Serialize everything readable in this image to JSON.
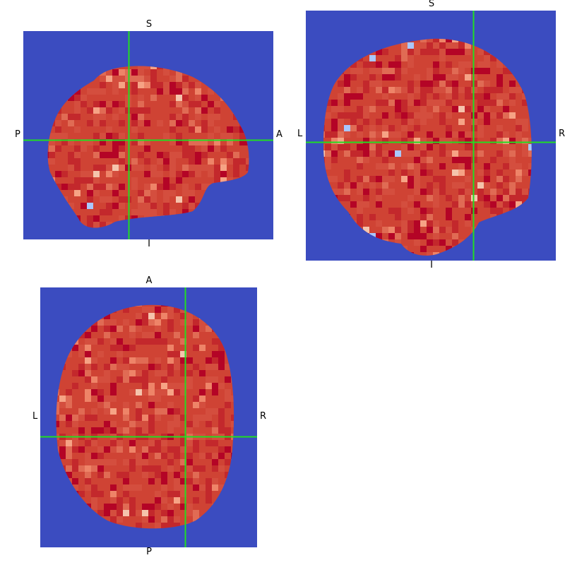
{
  "viewer": {
    "background_color": "#3b4cc0",
    "brain_color": "#cf4334",
    "crosshair_color": "#22dd22",
    "cell_palette": [
      "#b40426",
      "#c3282c",
      "#d44e3e",
      "#e06b54",
      "#ee8468",
      "#f6a385",
      "#f5c4ac",
      "#aac7fd"
    ],
    "views": {
      "sagittal": {
        "top": "S",
        "bottom": "I",
        "left": "P",
        "right": "A"
      },
      "coronal": {
        "top": "S",
        "bottom": "I",
        "left": "L",
        "right": "R"
      },
      "axial": {
        "top": "A",
        "bottom": "P",
        "left": "L",
        "right": "R"
      }
    }
  }
}
